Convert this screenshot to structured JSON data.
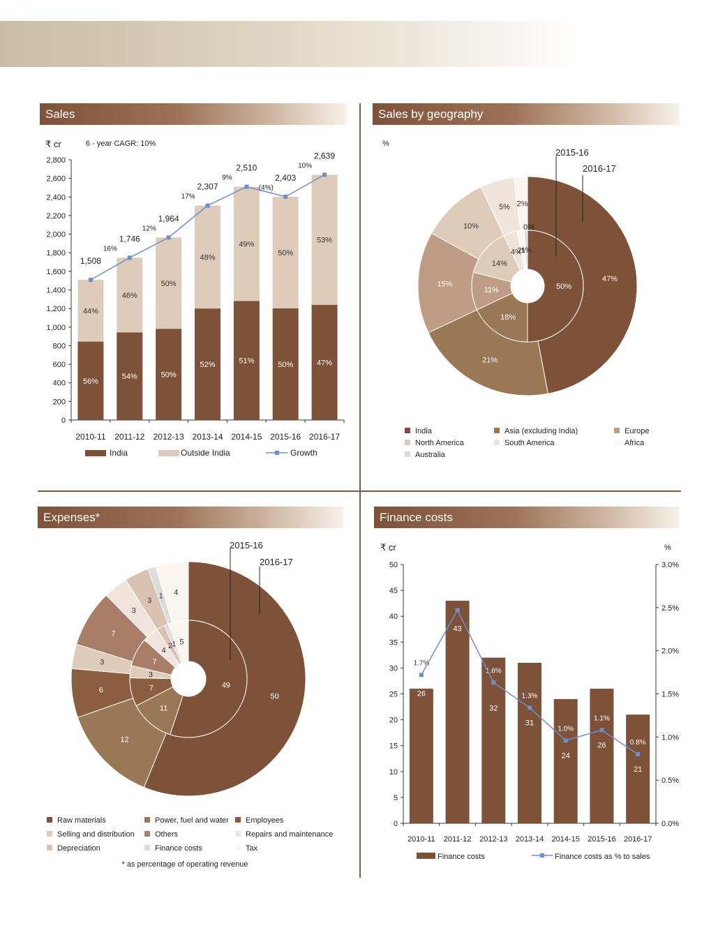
{
  "titles": {
    "sales": "Sales",
    "geography": "Sales by geography",
    "expenses": "Expenses*",
    "finance": "Finance costs"
  },
  "footnote": "* as percentage of operating revenue",
  "colors": {
    "dark_brown": "#7e5239",
    "light_beige": "#decbba",
    "line_blue": "#6f8fc9",
    "title_bar": "#8b6247"
  },
  "chart_data": [
    {
      "id": "sales",
      "type": "bar",
      "stacked": true,
      "unit_label": "₹ cr",
      "note": "6 - year CAGR: 10%",
      "categories": [
        "2010-11",
        "2011-12",
        "2012-13",
        "2013-14",
        "2014-15",
        "2015-16",
        "2016-17"
      ],
      "totals": [
        1508,
        1746,
        1964,
        2307,
        2510,
        2403,
        2639
      ],
      "total_labels": [
        "1,508",
        "1,746",
        "1,964",
        "2,307",
        "2,510",
        "2,403",
        "2,639"
      ],
      "series": [
        {
          "name": "India",
          "values": [
            844,
            943,
            982,
            1200,
            1280,
            1202,
            1240
          ],
          "pct_labels": [
            "56%",
            "54%",
            "50%",
            "52%",
            "51%",
            "50%",
            "47%"
          ],
          "color": "#7e5239"
        },
        {
          "name": "Outside India",
          "values": [
            664,
            803,
            982,
            1107,
            1230,
            1201,
            1399
          ],
          "pct_labels": [
            "44%",
            "46%",
            "50%",
            "48%",
            "49%",
            "50%",
            "53%"
          ],
          "color": "#decbba"
        },
        {
          "name": "Growth",
          "type": "line",
          "values": [
            1508,
            1746,
            1964,
            2307,
            2510,
            2403,
            2639
          ],
          "labels": [
            "",
            "16%",
            "12%",
            "17%",
            "9%",
            "(4%)",
            "10%"
          ],
          "color": "#6f8fc9"
        }
      ],
      "ylim": [
        0,
        2800
      ],
      "yticks": [
        "0",
        "200",
        "400",
        "600",
        "800",
        "1,000",
        "1,200",
        "1,400",
        "1,600",
        "1,800",
        "2,000",
        "2,200",
        "2,400",
        "2,600",
        "2,800"
      ],
      "legend": [
        "India",
        "Outside India",
        "Growth"
      ]
    },
    {
      "id": "geography",
      "type": "pie",
      "variant": "donut-two-ring",
      "unit_label": "%",
      "ring_labels": {
        "outer": "2016-17",
        "inner": "2015-16"
      },
      "categories": [
        "India",
        "Asia (excluding India)",
        "Europe",
        "North America",
        "South America",
        "Africa",
        "Australia"
      ],
      "colors": [
        "#7e5239",
        "#9a7755",
        "#bf9c86",
        "#decbba",
        "#f1e4dc",
        "#fbf6f0",
        "#dcdcdc"
      ],
      "outer_values": [
        47,
        21,
        15,
        10,
        5,
        2,
        0
      ],
      "inner_values": [
        50,
        18,
        11,
        14,
        4,
        2,
        1
      ],
      "outer_labels": [
        "47%",
        "21%",
        "15%",
        "10%",
        "5%",
        "2%",
        ""
      ],
      "inner_labels": [
        "50%",
        "18%",
        "11%",
        "14%",
        "4%",
        "2%",
        "1%"
      ],
      "extra_labels": [
        "0%"
      ],
      "legend_placement": "bottom"
    },
    {
      "id": "expenses",
      "type": "pie",
      "variant": "donut-two-ring",
      "ring_labels": {
        "outer": "2016-17",
        "inner": "2015-16"
      },
      "categories": [
        "Raw materials",
        "Power, fuel and water",
        "Employees",
        "Selling and distribution",
        "Others",
        "Repairs and maintenance",
        "Depreciation",
        "Finance costs",
        "Tax"
      ],
      "colors": [
        "#7e5239",
        "#9a7755",
        "#8b5e40",
        "#decbba",
        "#a87e68",
        "#f1e4dc",
        "#d9c2b2",
        "#dcdcdc",
        "#fbf6f0"
      ],
      "outer_values": [
        50,
        12,
        6,
        3,
        7,
        3,
        3,
        1,
        4
      ],
      "inner_values": [
        49,
        11,
        7,
        3,
        7,
        4,
        2,
        1,
        5
      ],
      "outer_labels": [
        "50",
        "12",
        "6",
        "3",
        "7",
        "3",
        "3",
        "1",
        "4"
      ],
      "inner_labels": [
        "49",
        "11",
        "7",
        "3",
        "7",
        "4",
        "2",
        "1",
        "5"
      ],
      "legend_placement": "bottom"
    },
    {
      "id": "finance",
      "type": "bar",
      "unit_label_left": "₹ cr",
      "unit_label_right": "%",
      "categories": [
        "2010-11",
        "2011-12",
        "2012-13",
        "2013-14",
        "2014-15",
        "2015-16",
        "2016-17"
      ],
      "series": [
        {
          "name": "Finance costs",
          "values": [
            26,
            43,
            32,
            31,
            24,
            26,
            21
          ],
          "labels": [
            "26",
            "43",
            "32",
            "31",
            "24",
            "26",
            "21"
          ],
          "color": "#7e5239"
        },
        {
          "name": "Finance costs as % to sales",
          "type": "line",
          "axis": "right",
          "values": [
            1.72,
            2.47,
            1.63,
            1.34,
            0.96,
            1.08,
            0.8
          ],
          "labels": [
            "1.7%",
            "2.5%",
            "1.6%",
            "1.3%",
            "1.0%",
            "1.1%",
            "0.8%"
          ],
          "color": "#6f8fc9"
        }
      ],
      "ylim": [
        0,
        50
      ],
      "yticks": [
        "0",
        "5",
        "10",
        "15",
        "20",
        "25",
        "30",
        "35",
        "40",
        "45",
        "50"
      ],
      "y2lim": [
        0,
        3.0
      ],
      "y2ticks": [
        "0.0%",
        "0.5%",
        "1.0%",
        "1.5%",
        "2.0%",
        "2.5%",
        "3.0%"
      ],
      "legend": [
        "Finance costs",
        "Finance costs as % to sales"
      ]
    }
  ]
}
